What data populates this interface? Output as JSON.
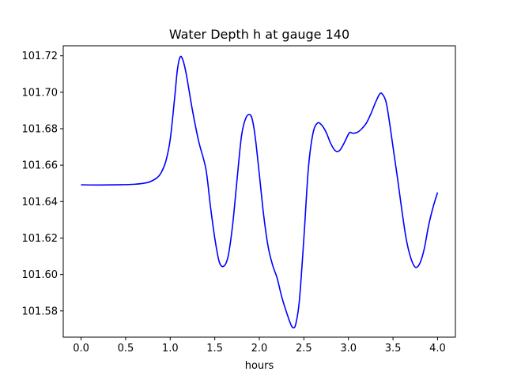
{
  "chart_data": {
    "type": "line",
    "title": "Water Depth h at gauge 140",
    "xlabel": "hours",
    "ylabel": "",
    "xlim": [
      -0.2,
      4.2
    ],
    "ylim": [
      101.5656,
      101.7255
    ],
    "x_ticks": [
      0.0,
      0.5,
      1.0,
      1.5,
      2.0,
      2.5,
      3.0,
      3.5,
      4.0
    ],
    "x_tick_labels": [
      "0.0",
      "0.5",
      "1.0",
      "1.5",
      "2.0",
      "2.5",
      "3.0",
      "3.5",
      "4.0"
    ],
    "y_ticks": [
      101.58,
      101.6,
      101.62,
      101.64,
      101.66,
      101.68,
      101.7,
      101.72
    ],
    "y_tick_labels": [
      "101.58",
      "101.60",
      "101.62",
      "101.64",
      "101.66",
      "101.68",
      "101.70",
      "101.72"
    ],
    "grid": false,
    "legend": "none",
    "series": [
      {
        "color": "#0000ff",
        "x": [
          0.0,
          0.2,
          0.4,
          0.6,
          0.75,
          0.85,
          0.9,
          0.95,
          1.0,
          1.05,
          1.08,
          1.11,
          1.14,
          1.18,
          1.25,
          1.32,
          1.4,
          1.45,
          1.5,
          1.55,
          1.6,
          1.65,
          1.7,
          1.75,
          1.8,
          1.85,
          1.9,
          1.93,
          1.96,
          2.0,
          2.05,
          2.1,
          2.15,
          2.2,
          2.25,
          2.3,
          2.35,
          2.38,
          2.41,
          2.45,
          2.5,
          2.55,
          2.6,
          2.65,
          2.7,
          2.75,
          2.8,
          2.85,
          2.9,
          2.95,
          3.0,
          3.02,
          3.05,
          3.1,
          3.15,
          3.2,
          3.25,
          3.3,
          3.35,
          3.38,
          3.42,
          3.45,
          3.5,
          3.55,
          3.6,
          3.65,
          3.7,
          3.75,
          3.8,
          3.85,
          3.9,
          3.95,
          4.0
        ],
        "y": [
          101.6492,
          101.6491,
          101.6492,
          101.6495,
          101.6505,
          101.653,
          101.656,
          101.662,
          101.674,
          101.697,
          101.712,
          101.7192,
          101.718,
          101.71,
          101.69,
          101.673,
          101.658,
          101.638,
          101.62,
          101.607,
          101.6045,
          101.61,
          101.627,
          101.652,
          101.676,
          101.686,
          101.6875,
          101.683,
          101.673,
          101.655,
          101.632,
          101.615,
          101.605,
          101.598,
          101.588,
          101.58,
          101.573,
          101.5708,
          101.573,
          101.586,
          101.62,
          101.658,
          101.677,
          101.683,
          101.682,
          101.678,
          101.672,
          101.668,
          101.668,
          101.672,
          101.677,
          101.678,
          101.6775,
          101.678,
          101.68,
          101.683,
          101.688,
          101.694,
          101.699,
          101.699,
          101.695,
          101.687,
          101.67,
          101.653,
          101.635,
          101.619,
          101.609,
          101.604,
          101.606,
          101.614,
          101.627,
          101.637,
          101.645
        ]
      }
    ]
  }
}
